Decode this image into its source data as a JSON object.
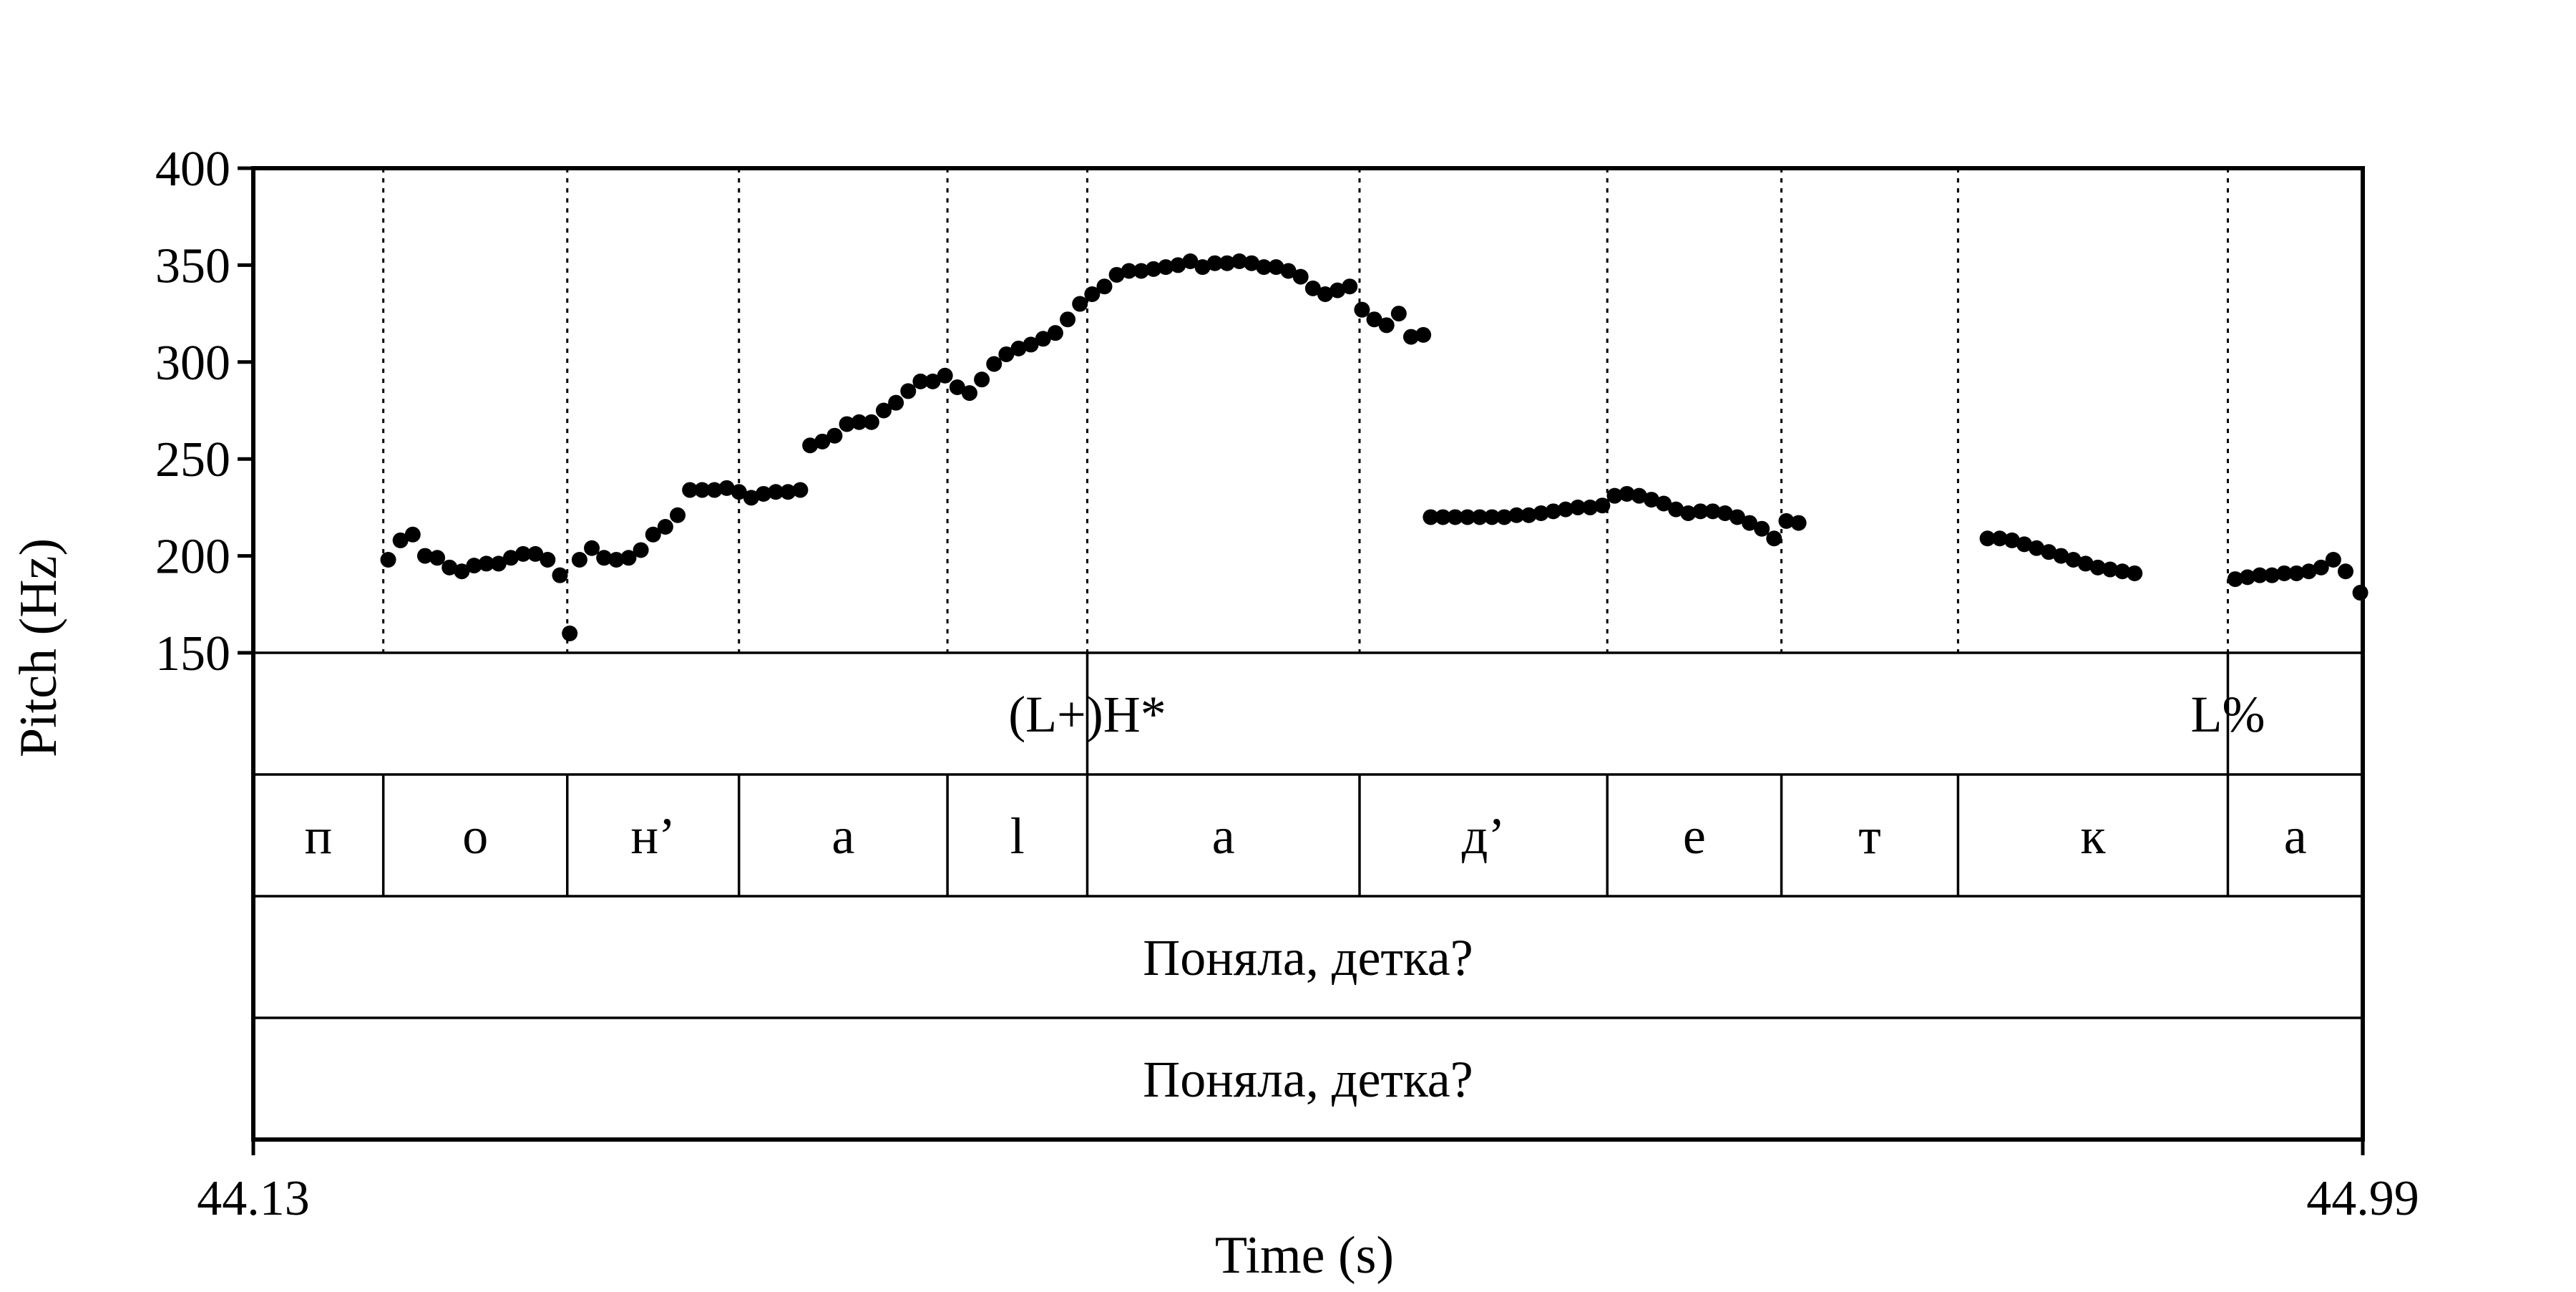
{
  "chart_data": {
    "type": "scatter",
    "ylabel": "Pitch (Hz)",
    "xlabel": "Time (s)",
    "xlim": [
      44.13,
      44.99
    ],
    "ylim": [
      150,
      400
    ],
    "y_ticks": [
      "150",
      "200",
      "250",
      "300",
      "350",
      "400"
    ],
    "x_ticks": [
      {
        "value": 44.13,
        "label": "44.13"
      },
      {
        "value": 44.99,
        "label": "44.99"
      }
    ],
    "segment_boundaries": [
      44.183,
      44.258,
      44.328,
      44.413,
      44.47,
      44.581,
      44.682,
      44.753,
      44.825,
      44.935
    ],
    "tiers": [
      {
        "name": "tones",
        "labels": [
          {
            "time": 44.47,
            "text": "(L+)H*"
          },
          {
            "time": 44.935,
            "text": "L%"
          }
        ]
      },
      {
        "name": "segments",
        "intervals": [
          {
            "start": 44.13,
            "end": 44.183,
            "text": "п"
          },
          {
            "start": 44.183,
            "end": 44.258,
            "text": "о"
          },
          {
            "start": 44.258,
            "end": 44.328,
            "text": "н’"
          },
          {
            "start": 44.328,
            "end": 44.413,
            "text": "а"
          },
          {
            "start": 44.413,
            "end": 44.47,
            "text": "l"
          },
          {
            "start": 44.47,
            "end": 44.581,
            "text": "а"
          },
          {
            "start": 44.581,
            "end": 44.682,
            "text": "д’"
          },
          {
            "start": 44.682,
            "end": 44.753,
            "text": "е"
          },
          {
            "start": 44.753,
            "end": 44.825,
            "text": "т"
          },
          {
            "start": 44.825,
            "end": 44.935,
            "text": "к"
          },
          {
            "start": 44.935,
            "end": 44.99,
            "text": "а"
          }
        ]
      },
      {
        "name": "utterance",
        "intervals": [
          {
            "start": 44.13,
            "end": 44.99,
            "text": "Поняла, детка?"
          }
        ]
      },
      {
        "name": "utterance-2",
        "intervals": [
          {
            "start": 44.13,
            "end": 44.99,
            "text": "Поняла, детка?"
          }
        ]
      }
    ],
    "points": [
      [
        44.185,
        198
      ],
      [
        44.19,
        208
      ],
      [
        44.195,
        211
      ],
      [
        44.2,
        200
      ],
      [
        44.205,
        199
      ],
      [
        44.21,
        194
      ],
      [
        44.215,
        192
      ],
      [
        44.22,
        195
      ],
      [
        44.225,
        196
      ],
      [
        44.23,
        196
      ],
      [
        44.235,
        199
      ],
      [
        44.24,
        201
      ],
      [
        44.245,
        201
      ],
      [
        44.25,
        198
      ],
      [
        44.255,
        190
      ],
      [
        44.259,
        160
      ],
      [
        44.263,
        198
      ],
      [
        44.268,
        204
      ],
      [
        44.273,
        199
      ],
      [
        44.278,
        198
      ],
      [
        44.283,
        199
      ],
      [
        44.288,
        203
      ],
      [
        44.293,
        211
      ],
      [
        44.298,
        215
      ],
      [
        44.303,
        221
      ],
      [
        44.308,
        234
      ],
      [
        44.313,
        234
      ],
      [
        44.318,
        234
      ],
      [
        44.323,
        235
      ],
      [
        44.328,
        233
      ],
      [
        44.333,
        230
      ],
      [
        44.338,
        232
      ],
      [
        44.343,
        233
      ],
      [
        44.348,
        233
      ],
      [
        44.353,
        234
      ],
      [
        44.357,
        257
      ],
      [
        44.362,
        259
      ],
      [
        44.367,
        262
      ],
      [
        44.372,
        268
      ],
      [
        44.377,
        269
      ],
      [
        44.382,
        269
      ],
      [
        44.387,
        275
      ],
      [
        44.392,
        279
      ],
      [
        44.397,
        285
      ],
      [
        44.402,
        290
      ],
      [
        44.407,
        290
      ],
      [
        44.412,
        293
      ],
      [
        44.417,
        287
      ],
      [
        44.422,
        284
      ],
      [
        44.427,
        291
      ],
      [
        44.432,
        299
      ],
      [
        44.437,
        304
      ],
      [
        44.442,
        307
      ],
      [
        44.447,
        309
      ],
      [
        44.452,
        312
      ],
      [
        44.457,
        315
      ],
      [
        44.462,
        322
      ],
      [
        44.467,
        330
      ],
      [
        44.472,
        335
      ],
      [
        44.477,
        339
      ],
      [
        44.482,
        345
      ],
      [
        44.487,
        347
      ],
      [
        44.492,
        347
      ],
      [
        44.497,
        348
      ],
      [
        44.502,
        349
      ],
      [
        44.507,
        350
      ],
      [
        44.512,
        352
      ],
      [
        44.517,
        349
      ],
      [
        44.522,
        351
      ],
      [
        44.527,
        351
      ],
      [
        44.532,
        352
      ],
      [
        44.537,
        351
      ],
      [
        44.542,
        349
      ],
      [
        44.547,
        349
      ],
      [
        44.552,
        347
      ],
      [
        44.557,
        344
      ],
      [
        44.562,
        338
      ],
      [
        44.567,
        335
      ],
      [
        44.572,
        337
      ],
      [
        44.577,
        339
      ],
      [
        44.582,
        327
      ],
      [
        44.587,
        322
      ],
      [
        44.592,
        319
      ],
      [
        44.597,
        325
      ],
      [
        44.602,
        313
      ],
      [
        44.607,
        314
      ],
      [
        44.61,
        220
      ],
      [
        44.615,
        220
      ],
      [
        44.62,
        220
      ],
      [
        44.625,
        220
      ],
      [
        44.63,
        220
      ],
      [
        44.635,
        220
      ],
      [
        44.64,
        220
      ],
      [
        44.645,
        221
      ],
      [
        44.65,
        221
      ],
      [
        44.655,
        222
      ],
      [
        44.66,
        223
      ],
      [
        44.665,
        224
      ],
      [
        44.67,
        225
      ],
      [
        44.675,
        225
      ],
      [
        44.68,
        226
      ],
      [
        44.685,
        231
      ],
      [
        44.69,
        232
      ],
      [
        44.695,
        231
      ],
      [
        44.7,
        229
      ],
      [
        44.705,
        227
      ],
      [
        44.71,
        224
      ],
      [
        44.715,
        222
      ],
      [
        44.72,
        223
      ],
      [
        44.725,
        223
      ],
      [
        44.73,
        222
      ],
      [
        44.735,
        220
      ],
      [
        44.74,
        217
      ],
      [
        44.745,
        214
      ],
      [
        44.75,
        209
      ],
      [
        44.755,
        218
      ],
      [
        44.76,
        217
      ],
      [
        44.837,
        209
      ],
      [
        44.842,
        209
      ],
      [
        44.847,
        208
      ],
      [
        44.852,
        206
      ],
      [
        44.857,
        204
      ],
      [
        44.862,
        202
      ],
      [
        44.867,
        200
      ],
      [
        44.872,
        198
      ],
      [
        44.877,
        196
      ],
      [
        44.882,
        194
      ],
      [
        44.887,
        193
      ],
      [
        44.892,
        192
      ],
      [
        44.897,
        191
      ],
      [
        44.938,
        188
      ],
      [
        44.943,
        189
      ],
      [
        44.948,
        190
      ],
      [
        44.953,
        190
      ],
      [
        44.958,
        191
      ],
      [
        44.963,
        191
      ],
      [
        44.968,
        192
      ],
      [
        44.973,
        194
      ],
      [
        44.978,
        198
      ],
      [
        44.983,
        192
      ],
      [
        44.989,
        181
      ]
    ]
  }
}
